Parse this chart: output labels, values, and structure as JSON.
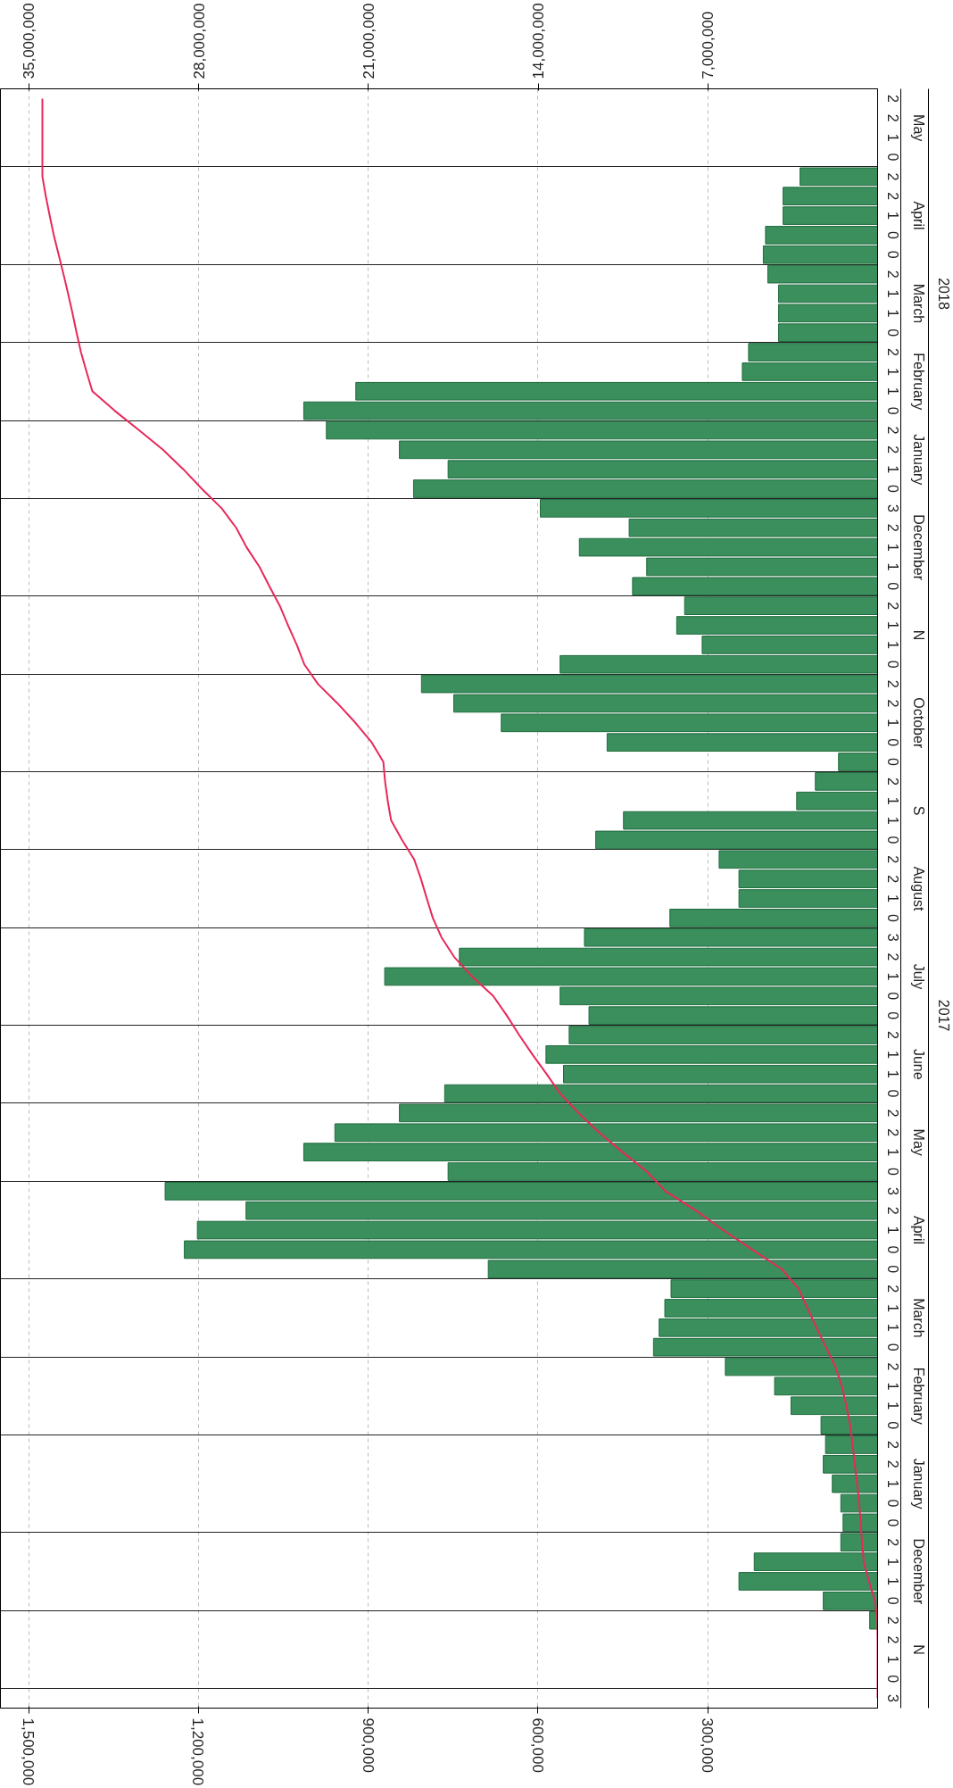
{
  "chart_data": {
    "type": "bar",
    "orientation": "horizontal",
    "categories": [
      "2",
      "2",
      "1",
      "0",
      "2",
      "2",
      "1",
      "0",
      "0",
      "2",
      "1",
      "1",
      "0",
      "2",
      "1",
      "1",
      "0",
      "2",
      "2",
      "1",
      "0",
      "3",
      "2",
      "1",
      "1",
      "0",
      "2",
      "1",
      "1",
      "0",
      "2",
      "2",
      "1",
      "0",
      "0",
      "2",
      "1",
      "1",
      "0",
      "2",
      "2",
      "1",
      "0",
      "3",
      "2",
      "1",
      "0",
      "0",
      "2",
      "1",
      "1",
      "0",
      "2",
      "2",
      "1",
      "0",
      "3",
      "2",
      "1",
      "0",
      "0",
      "2",
      "1",
      "1",
      "0",
      "2",
      "1",
      "1",
      "0",
      "2",
      "2",
      "1",
      "0",
      "0",
      "2",
      "1",
      "1",
      "0",
      "2",
      "2",
      "1",
      "0",
      "3"
    ],
    "series": [
      {
        "color": "#3b8f5c",
        "values": [
          null,
          null,
          null,
          null,
          137000,
          167000,
          167000,
          198000,
          202000,
          194000,
          175000,
          175000,
          175000,
          228000,
          239000,
          922000,
          1014000,
          974000,
          845000,
          759000,
          820000,
          596000,
          439000,
          527000,
          408000,
          433000,
          341000,
          355000,
          310000,
          561000,
          806000,
          749000,
          665000,
          478000,
          69000,
          110000,
          143000,
          449000,
          498000,
          280000,
          245000,
          245000,
          367000,
          518000,
          739000,
          871000,
          561000,
          510000,
          545000,
          586000,
          555000,
          765000,
          845000,
          959000,
          1014000,
          759000,
          1259000,
          1116000,
          1202000,
          1225000,
          688000,
          365000,
          376000,
          386000,
          396000,
          269000,
          182000,
          153000,
          100000,
          92000,
          96000,
          80000,
          65000,
          61000,
          65000,
          218000,
          245000,
          96000,
          14000,
          null,
          null,
          null,
          null
        ]
      },
      {
        "type": "line",
        "axis": "x2",
        "color": "#e8285a",
        "values": [
          34440000,
          34440000,
          34440000,
          34440000,
          34440000,
          34300000,
          34140000,
          33970000,
          33770000,
          33570000,
          33380000,
          33200000,
          33030000,
          32850000,
          32620000,
          32380000,
          31460000,
          30450000,
          29470000,
          28630000,
          27870000,
          27050000,
          26450000,
          26020000,
          25490000,
          25080000,
          24650000,
          24310000,
          23950000,
          23640000,
          23080000,
          22270000,
          21530000,
          20860000,
          20380000,
          20310000,
          20200000,
          20060000,
          19610000,
          19110000,
          18830000,
          18590000,
          18340000,
          17980000,
          17460000,
          16720000,
          15850000,
          15290000,
          14780000,
          14230000,
          13650000,
          13090000,
          12330000,
          11480000,
          10520000,
          9510000,
          8750000,
          7490000,
          6370000,
          5170000,
          3950000,
          3260000,
          2890000,
          2520000,
          2130000,
          1740000,
          1470000,
          1290000,
          1130000,
          1030000,
          940000,
          840000,
          760000,
          700000,
          640000,
          570000,
          360000,
          110000,
          10000,
          0,
          0,
          0,
          0
        ]
      }
    ],
    "xlim": [
      1550000,
      0
    ],
    "xticks": [
      {
        "value": 300000,
        "label": "300,000"
      },
      {
        "value": 600000,
        "label": "600,000"
      },
      {
        "value": 900000,
        "label": "900,000"
      },
      {
        "value": 1200000,
        "label": "1,200,000"
      },
      {
        "value": 1500000,
        "label": "1,500,000"
      }
    ],
    "x2lim": [
      36170000,
      0
    ],
    "x2ticks": [
      {
        "value": 7000000,
        "label": "7,000,000"
      },
      {
        "value": 14000000,
        "label": "14,000,000"
      },
      {
        "value": 21000000,
        "label": "21,000,000"
      },
      {
        "value": 28000000,
        "label": "28,000,000"
      },
      {
        "value": 35000000,
        "label": "35,000,000"
      }
    ],
    "annotations": [
      "May",
      "April",
      "March",
      "February",
      "January",
      "December",
      "N",
      "October",
      "S",
      "August",
      "July",
      "June",
      "May",
      "April",
      "March",
      "February",
      "January",
      "December",
      "N",
      "2018",
      "2017"
    ],
    "grid": true
  }
}
